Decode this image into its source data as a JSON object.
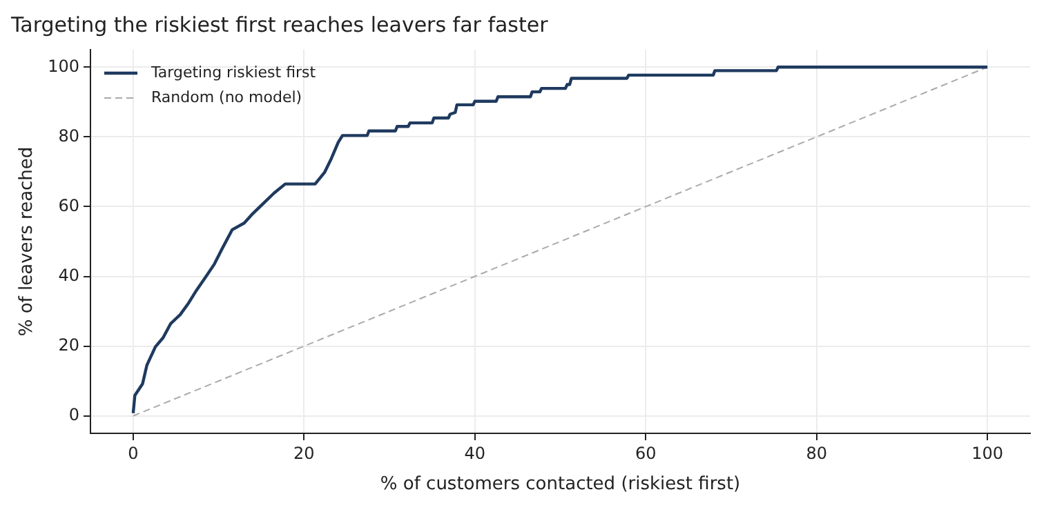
{
  "chart_data": {
    "type": "line",
    "title": "Targeting the riskiest first reaches leavers far faster",
    "xlabel": "% of customers contacted (riskiest first)",
    "ylabel": "% of leavers reached",
    "series": [
      {
        "name": "Targeting riskiest first",
        "color": "#1f3a5f",
        "line_style": "solid",
        "x": [
          0,
          0.2,
          1.1,
          1.6,
          2.6,
          3.5,
          4.4,
          5.5,
          6.5,
          7.3,
          8.4,
          9.5,
          10.3,
          11.6,
          13,
          14,
          15.4,
          16.5,
          17.8,
          21.3,
          22.4,
          23.2,
          24,
          24.5,
          27.4,
          27.6,
          30.7,
          30.9,
          32.2,
          32.4,
          35,
          35.2,
          36.9,
          37.1,
          37.7,
          37.9,
          39.8,
          40,
          42.5,
          42.7,
          46.5,
          46.7,
          47.6,
          47.8,
          50.6,
          50.8,
          51.1,
          51.3,
          57.8,
          58,
          67.9,
          68.1,
          75.3,
          75.5,
          100
        ],
        "values": [
          0.8,
          5.9,
          9.2,
          14.5,
          19.8,
          22.4,
          26.5,
          29,
          32.4,
          35.6,
          39.5,
          43.5,
          47.4,
          53.4,
          55.3,
          58,
          61.3,
          63.9,
          66.5,
          66.5,
          69.8,
          73.8,
          78.4,
          80.4,
          80.4,
          81.7,
          81.7,
          83,
          83,
          84,
          84,
          85.4,
          85.4,
          86.5,
          87,
          89.2,
          89.2,
          90.2,
          90.2,
          91.5,
          91.5,
          92.9,
          92.9,
          93.9,
          93.9,
          95,
          95,
          96.8,
          96.8,
          97.7,
          97.7,
          99,
          99,
          100,
          100
        ]
      },
      {
        "name": "Random (no model)",
        "color": "#aaaaaa",
        "line_style": "dashed",
        "x": [
          0,
          100
        ],
        "values": [
          0,
          100
        ]
      }
    ],
    "xlim": [
      -5,
      105
    ],
    "ylim": [
      -5,
      105
    ],
    "xticks": [
      0,
      20,
      40,
      60,
      80,
      100
    ],
    "yticks": [
      0,
      20,
      40,
      60,
      80,
      100
    ],
    "grid": true,
    "legend": "top left",
    "marker": "none"
  }
}
